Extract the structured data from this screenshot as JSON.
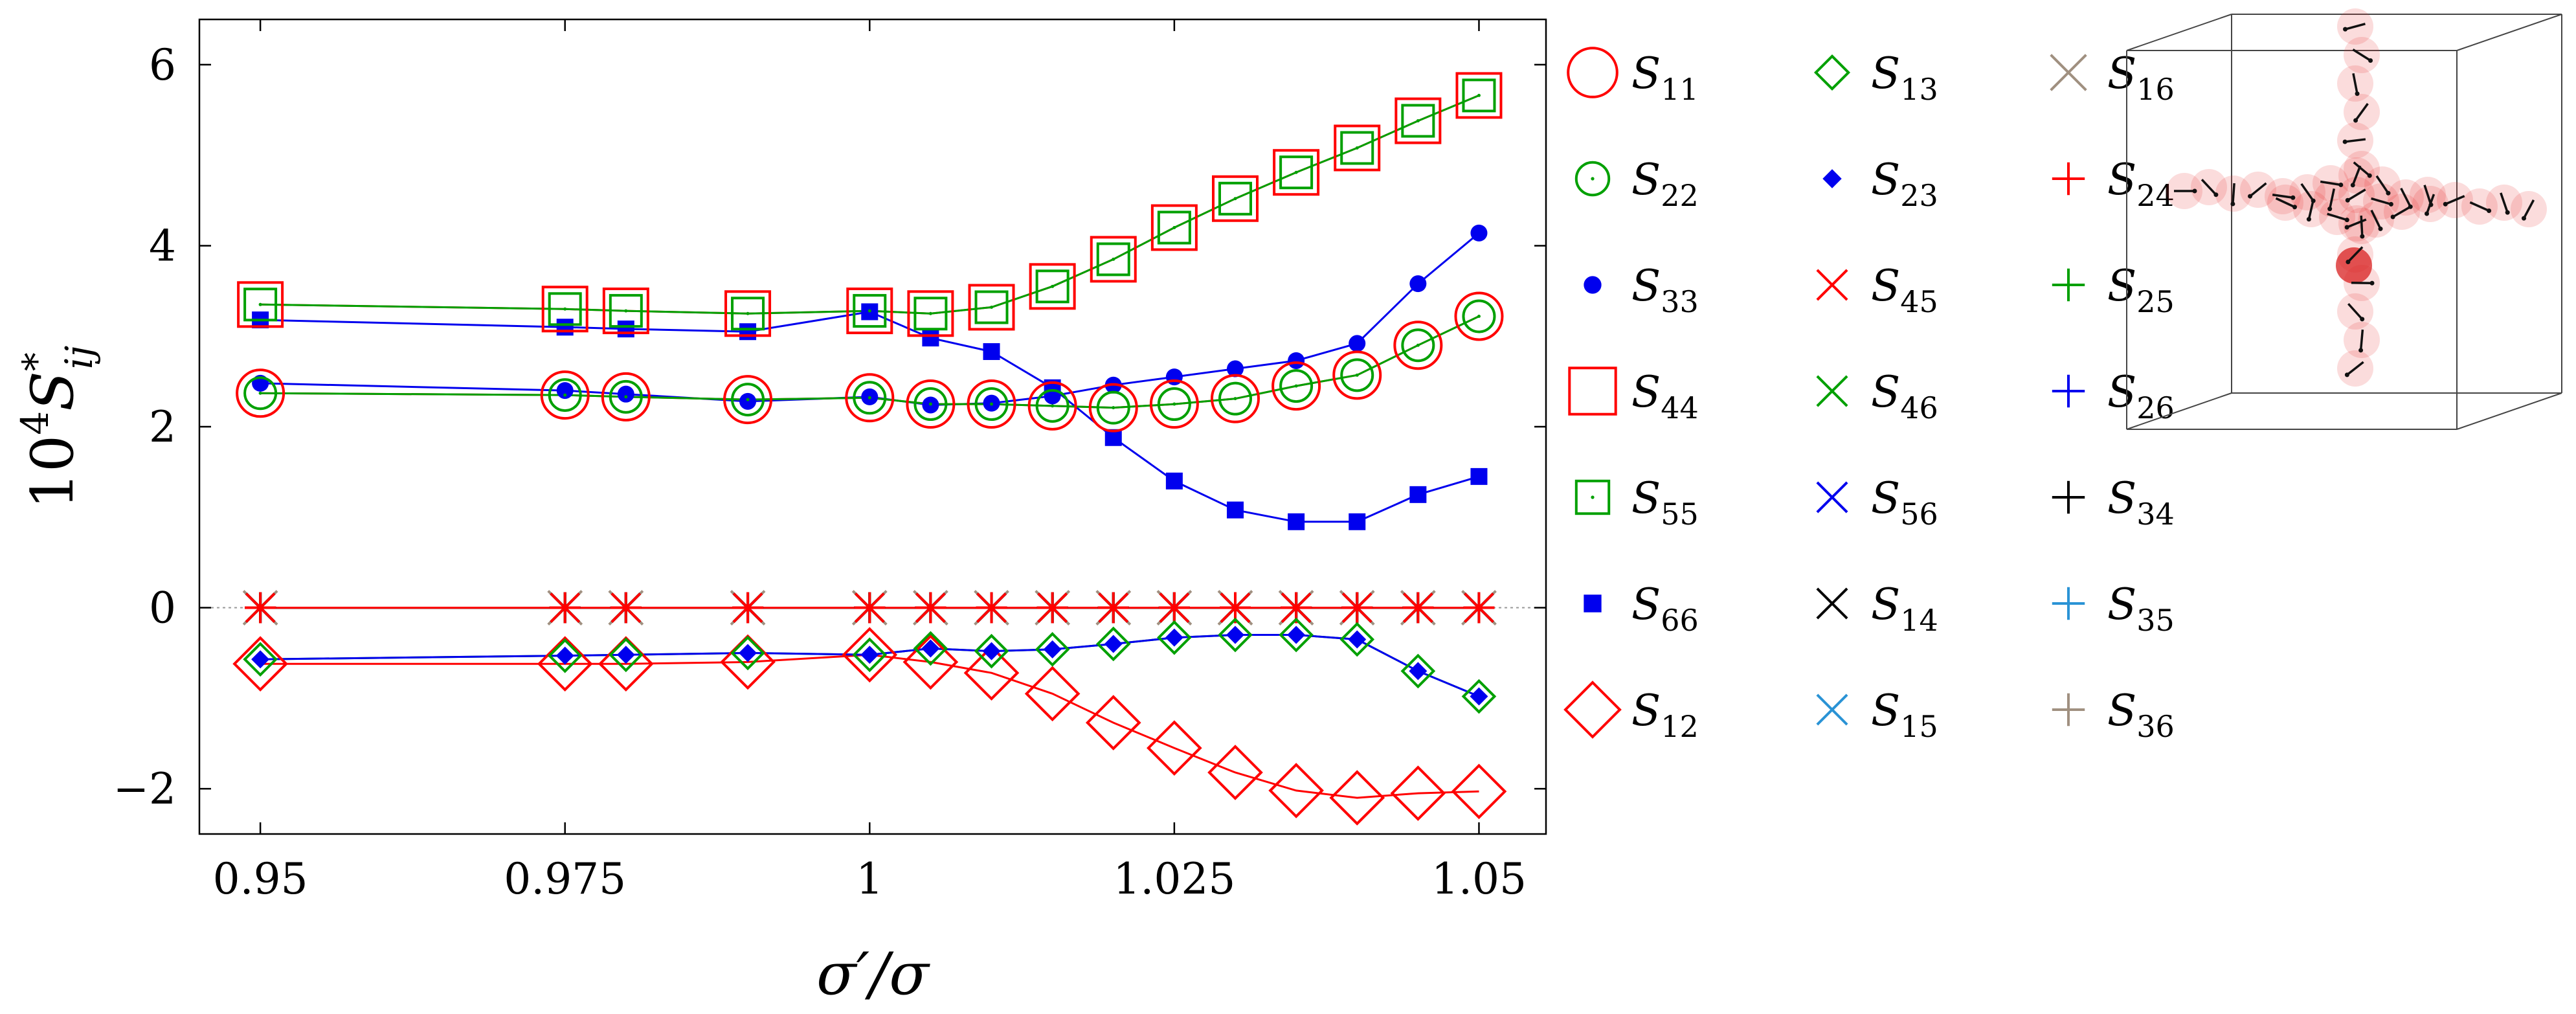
{
  "chart_data": {
    "type": "line",
    "title": "",
    "xlabel": "σ′/σ",
    "ylabel": "10^4 S*ij",
    "xlim": [
      0.945,
      1.0555
    ],
    "ylim": [
      -2.5,
      6.5
    ],
    "xticks": [
      0.95,
      0.975,
      1,
      1.025,
      1.05
    ],
    "xtick_labels": [
      "0.95",
      "0.975",
      "1",
      "1.025",
      "1.05"
    ],
    "yticks": [
      -2,
      0,
      2,
      4,
      6
    ],
    "ytick_labels": [
      "−2",
      "0",
      "2",
      "4",
      "6"
    ],
    "x": [
      0.95,
      0.975,
      0.98,
      0.99,
      1.0,
      1.005,
      1.01,
      1.015,
      1.02,
      1.025,
      1.03,
      1.035,
      1.04,
      1.045,
      1.05
    ],
    "series": [
      {
        "name": "S11",
        "color": "#ff0000",
        "marker": "circle-big",
        "values": [
          2.37,
          2.35,
          2.33,
          2.3,
          2.32,
          2.25,
          2.25,
          2.23,
          2.21,
          2.25,
          2.31,
          2.45,
          2.57,
          2.9,
          3.22
        ]
      },
      {
        "name": "S22",
        "color": "#00a000",
        "marker": "circle-open",
        "values": [
          2.37,
          2.35,
          2.33,
          2.3,
          2.32,
          2.25,
          2.25,
          2.23,
          2.21,
          2.25,
          2.31,
          2.45,
          2.57,
          2.9,
          3.22
        ]
      },
      {
        "name": "S33",
        "color": "#0000ee",
        "marker": "dot",
        "values": [
          2.48,
          2.4,
          2.36,
          2.28,
          2.33,
          2.24,
          2.26,
          2.34,
          2.46,
          2.55,
          2.64,
          2.73,
          2.92,
          3.58,
          4.14
        ]
      },
      {
        "name": "S44",
        "color": "#ff0000",
        "marker": "square-big",
        "values": [
          3.35,
          3.3,
          3.28,
          3.25,
          3.28,
          3.25,
          3.32,
          3.55,
          3.85,
          4.2,
          4.52,
          4.81,
          5.08,
          5.38,
          5.66
        ]
      },
      {
        "name": "S55",
        "color": "#00a000",
        "marker": "square-open",
        "values": [
          3.35,
          3.3,
          3.28,
          3.25,
          3.28,
          3.25,
          3.32,
          3.55,
          3.85,
          4.2,
          4.52,
          4.81,
          5.08,
          5.38,
          5.66
        ]
      },
      {
        "name": "S66",
        "color": "#0000ee",
        "marker": "square-filled",
        "values": [
          3.18,
          3.1,
          3.08,
          3.05,
          3.27,
          2.98,
          2.83,
          2.43,
          1.88,
          1.4,
          1.08,
          0.95,
          0.95,
          1.25,
          1.45
        ]
      },
      {
        "name": "S12",
        "color": "#ff0000",
        "marker": "diamond-big",
        "values": [
          -0.62,
          -0.62,
          -0.62,
          -0.6,
          -0.52,
          -0.6,
          -0.72,
          -0.95,
          -1.27,
          -1.55,
          -1.82,
          -2.02,
          -2.1,
          -2.05,
          -2.03
        ]
      },
      {
        "name": "S13",
        "color": "#00a000",
        "marker": "diamond-open",
        "values": [
          -0.57,
          -0.53,
          -0.52,
          -0.5,
          -0.52,
          -0.45,
          -0.48,
          -0.46,
          -0.4,
          -0.33,
          -0.3,
          -0.3,
          -0.35,
          -0.7,
          -0.98
        ]
      },
      {
        "name": "S23",
        "color": "#0000ee",
        "marker": "diamond-filled",
        "values": [
          -0.57,
          -0.53,
          -0.52,
          -0.5,
          -0.52,
          -0.45,
          -0.48,
          -0.46,
          -0.4,
          -0.33,
          -0.3,
          -0.3,
          -0.35,
          -0.7,
          -0.98
        ]
      },
      {
        "name": "S16",
        "color": "#a09080",
        "marker": "x-big",
        "values": [
          0,
          0,
          0,
          0,
          0,
          0,
          0,
          0,
          0,
          0,
          0,
          0,
          0,
          0,
          0
        ]
      },
      {
        "name": "S24",
        "color": "#ff0000",
        "marker": "plus",
        "values": [
          0,
          0,
          0,
          0,
          0,
          0,
          0,
          0,
          0,
          0,
          0,
          0,
          0,
          0,
          0
        ]
      },
      {
        "name": "S45",
        "color": "#ff0000",
        "marker": "x",
        "values": [
          0,
          0,
          0,
          0,
          0,
          0,
          0,
          0,
          0,
          0,
          0,
          0,
          0,
          0,
          0
        ]
      },
      {
        "name": "S25",
        "color": "#00a000",
        "marker": "plus",
        "values": [
          0,
          0,
          0,
          0,
          0,
          0,
          0,
          0,
          0,
          0,
          0,
          0,
          0,
          0,
          0
        ]
      },
      {
        "name": "S46",
        "color": "#00a000",
        "marker": "x",
        "values": [
          0,
          0,
          0,
          0,
          0,
          0,
          0,
          0,
          0,
          0,
          0,
          0,
          0,
          0,
          0
        ]
      },
      {
        "name": "S26",
        "color": "#0000ee",
        "marker": "plus",
        "values": [
          0,
          0,
          0,
          0,
          0,
          0,
          0,
          0,
          0,
          0,
          0,
          0,
          0,
          0,
          0
        ]
      },
      {
        "name": "S56",
        "color": "#0000ee",
        "marker": "x",
        "values": [
          0,
          0,
          0,
          0,
          0,
          0,
          0,
          0,
          0,
          0,
          0,
          0,
          0,
          0,
          0
        ]
      },
      {
        "name": "S34",
        "color": "#000000",
        "marker": "plus",
        "values": [
          0,
          0,
          0,
          0,
          0,
          0,
          0,
          0,
          0,
          0,
          0,
          0,
          0,
          0,
          0
        ]
      },
      {
        "name": "S14",
        "color": "#000000",
        "marker": "x",
        "values": [
          0,
          0,
          0,
          0,
          0,
          0,
          0,
          0,
          0,
          0,
          0,
          0,
          0,
          0,
          0
        ]
      },
      {
        "name": "S35",
        "color": "#2a93d5",
        "marker": "plus",
        "values": [
          0,
          0,
          0,
          0,
          0,
          0,
          0,
          0,
          0,
          0,
          0,
          0,
          0,
          0,
          0
        ]
      },
      {
        "name": "S15",
        "color": "#2a93d5",
        "marker": "x",
        "values": [
          0,
          0,
          0,
          0,
          0,
          0,
          0,
          0,
          0,
          0,
          0,
          0,
          0,
          0,
          0
        ]
      },
      {
        "name": "S36",
        "color": "#a09080",
        "marker": "plus",
        "values": [
          0,
          0,
          0,
          0,
          0,
          0,
          0,
          0,
          0,
          0,
          0,
          0,
          0,
          0,
          0
        ]
      }
    ],
    "legend": {
      "placement": "right",
      "columns": [
        [
          {
            "sub": "11",
            "marker": "circle-big",
            "color": "#ff0000"
          },
          {
            "sub": "22",
            "marker": "circle-open",
            "color": "#00a000"
          },
          {
            "sub": "33",
            "marker": "dot",
            "color": "#0000ee"
          },
          {
            "sub": "44",
            "marker": "square-big",
            "color": "#ff0000"
          },
          {
            "sub": "55",
            "marker": "square-open",
            "color": "#00a000"
          },
          {
            "sub": "66",
            "marker": "square-filled",
            "color": "#0000ee"
          },
          {
            "sub": "12",
            "marker": "diamond-big",
            "color": "#ff0000"
          }
        ],
        [
          {
            "sub": "13",
            "marker": "diamond-open",
            "color": "#00a000"
          },
          {
            "sub": "23",
            "marker": "diamond-filled",
            "color": "#0000ee"
          },
          {
            "sub": "45",
            "marker": "x",
            "color": "#ff0000"
          },
          {
            "sub": "46",
            "marker": "x",
            "color": "#00a000"
          },
          {
            "sub": "56",
            "marker": "x",
            "color": "#0000ee"
          },
          {
            "sub": "14",
            "marker": "x",
            "color": "#000000"
          },
          {
            "sub": "15",
            "marker": "x",
            "color": "#2a93d5"
          }
        ],
        [
          {
            "sub": "16",
            "marker": "x-big",
            "color": "#a09080"
          },
          {
            "sub": "24",
            "marker": "plus",
            "color": "#ff0000"
          },
          {
            "sub": "25",
            "marker": "plus",
            "color": "#00a000"
          },
          {
            "sub": "26",
            "marker": "plus",
            "color": "#0000ee"
          },
          {
            "sub": "34",
            "marker": "plus",
            "color": "#000000"
          },
          {
            "sub": "35",
            "marker": "plus",
            "color": "#2a93d5"
          },
          {
            "sub": "36",
            "marker": "plus",
            "color": "#a09080"
          }
        ]
      ]
    },
    "inset": {
      "type": "3d-cluster",
      "description_colors": {
        "sphere": "#e03030",
        "spin": "#000000",
        "box": "#444444"
      }
    }
  }
}
